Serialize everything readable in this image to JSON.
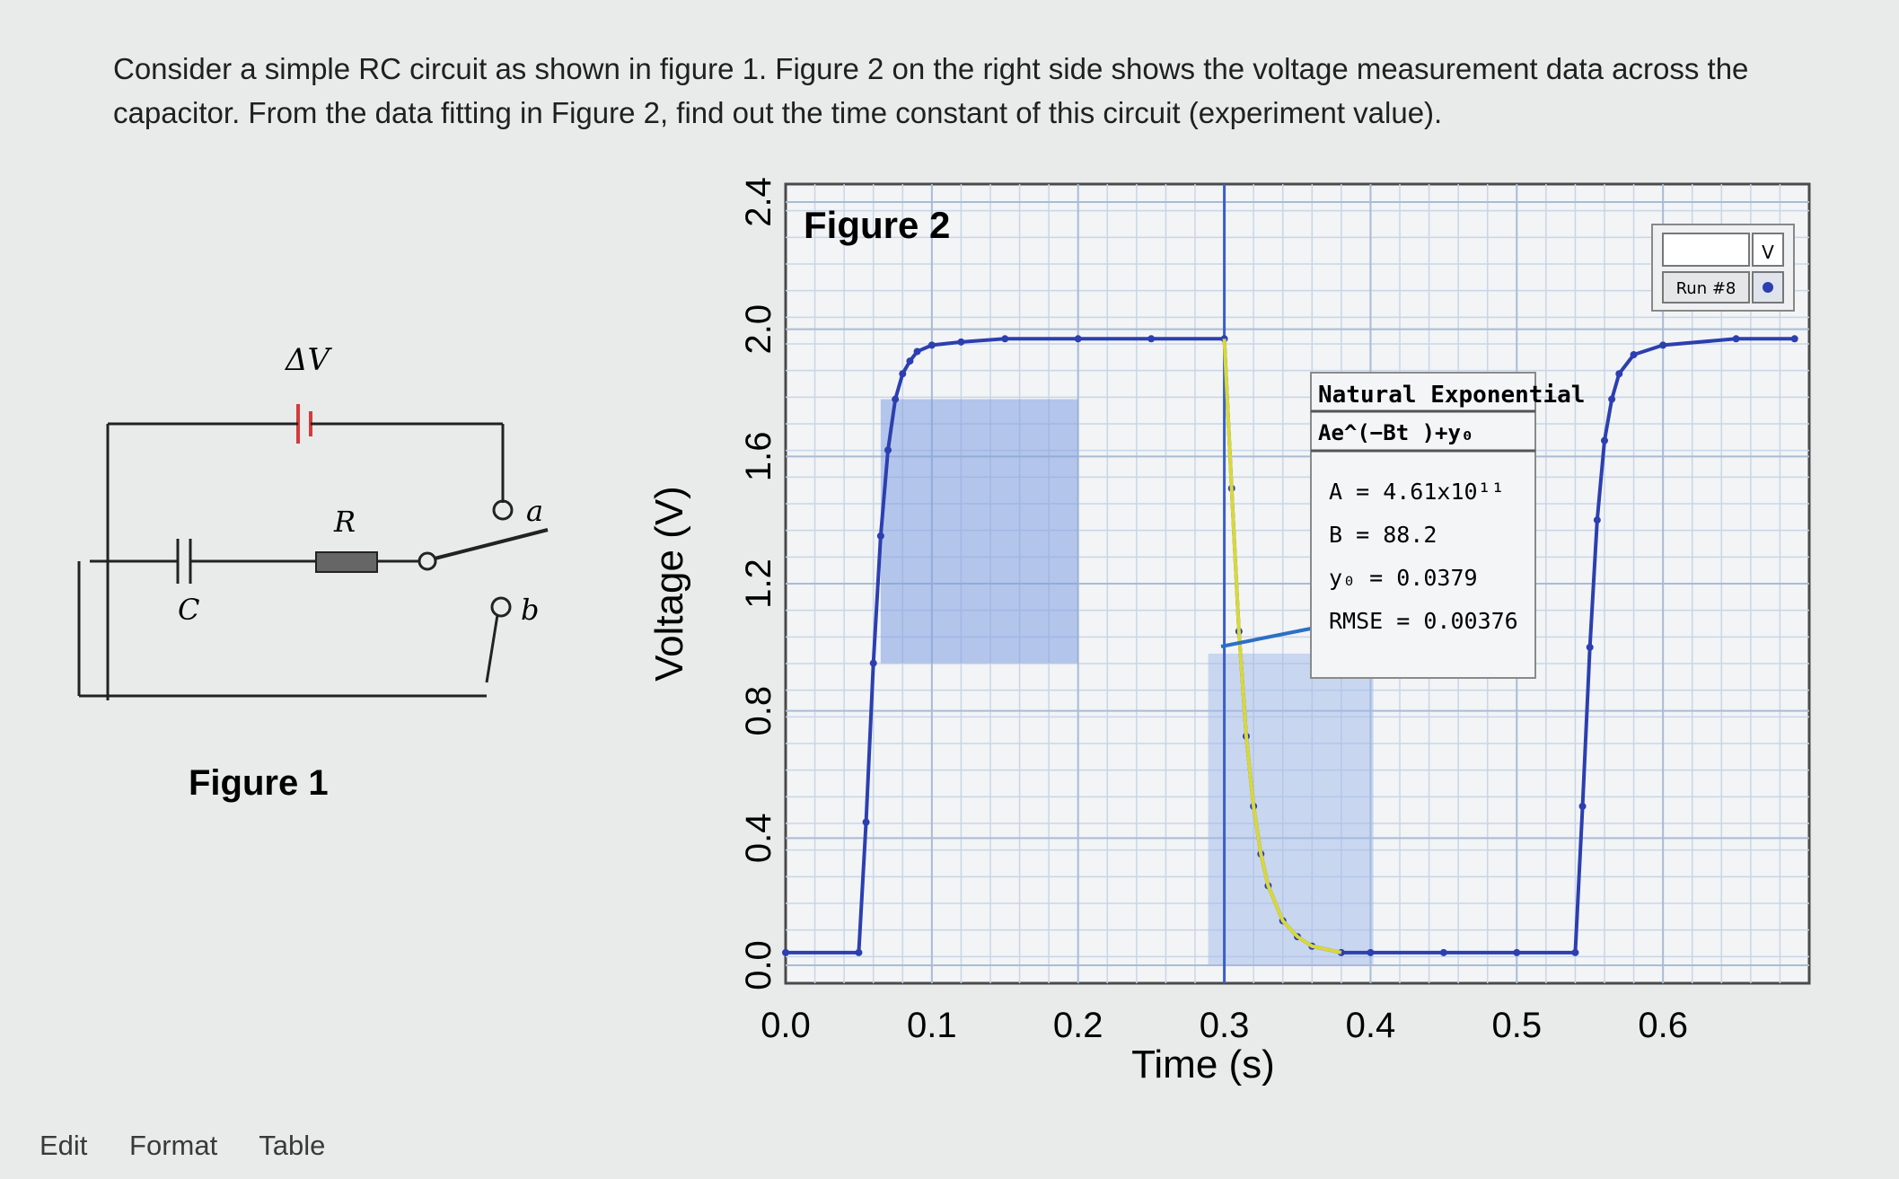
{
  "question": {
    "text": "Consider a simple RC circuit as shown in figure 1. Figure 2 on the right side shows the voltage measurement data across the capacitor. From the data fitting in Figure 2, find out the time constant of this circuit (experiment value)."
  },
  "figure1": {
    "caption": "Figure 1",
    "labels": {
      "battery": "ΔV",
      "resistor": "R",
      "capacitor": "C",
      "terminal_a": "a",
      "terminal_b": "b"
    }
  },
  "toolbar": {
    "edit": "Edit",
    "format": "Format",
    "table": "Table"
  },
  "chart_data": {
    "type": "line",
    "title": "Figure 2",
    "xlabel": "Time (s)",
    "ylabel": "Voltage (V)",
    "xlim": [
      0.0,
      0.7
    ],
    "ylim": [
      0.0,
      2.4
    ],
    "x_ticks": [
      "0.0",
      "0.1",
      "0.2",
      "0.3",
      "0.4",
      "0.5",
      "0.6"
    ],
    "y_ticks": [
      "0.0",
      "0.4",
      "0.8",
      "1.2",
      "1.6",
      "2.0",
      "2.4"
    ],
    "grid": true,
    "series": [
      {
        "color": "#2c3fb0",
        "x": [
          0.0,
          0.05,
          0.055,
          0.06,
          0.065,
          0.07,
          0.075,
          0.08,
          0.085,
          0.09,
          0.1,
          0.12,
          0.15,
          0.2,
          0.25,
          0.3,
          0.305,
          0.31,
          0.315,
          0.32,
          0.325,
          0.33,
          0.34,
          0.35,
          0.36,
          0.38,
          0.4,
          0.45,
          0.5,
          0.54,
          0.545,
          0.55,
          0.555,
          0.56,
          0.565,
          0.57,
          0.58,
          0.6,
          0.65,
          0.69
        ],
        "y": [
          0.04,
          0.04,
          0.45,
          0.95,
          1.35,
          1.62,
          1.78,
          1.86,
          1.9,
          1.93,
          1.95,
          1.96,
          1.97,
          1.97,
          1.97,
          1.97,
          1.5,
          1.05,
          0.72,
          0.5,
          0.35,
          0.25,
          0.14,
          0.09,
          0.06,
          0.04,
          0.04,
          0.04,
          0.04,
          0.04,
          0.5,
          1.0,
          1.4,
          1.65,
          1.78,
          1.86,
          1.92,
          1.95,
          1.97,
          1.97
        ]
      }
    ],
    "fit_region": [
      0.3,
      0.37
    ],
    "fit": {
      "color": "#d8d83a",
      "title": "Natural Exponential",
      "equation": "Ae^(−Bt )+y₀",
      "params": [
        "A = 4.61x10¹¹",
        "B = 88.2",
        "y₀ = 0.0379",
        "RMSE = 0.00376"
      ]
    },
    "legend": {
      "placement": "top-right",
      "entry": "Run #8",
      "channel": "V"
    }
  }
}
